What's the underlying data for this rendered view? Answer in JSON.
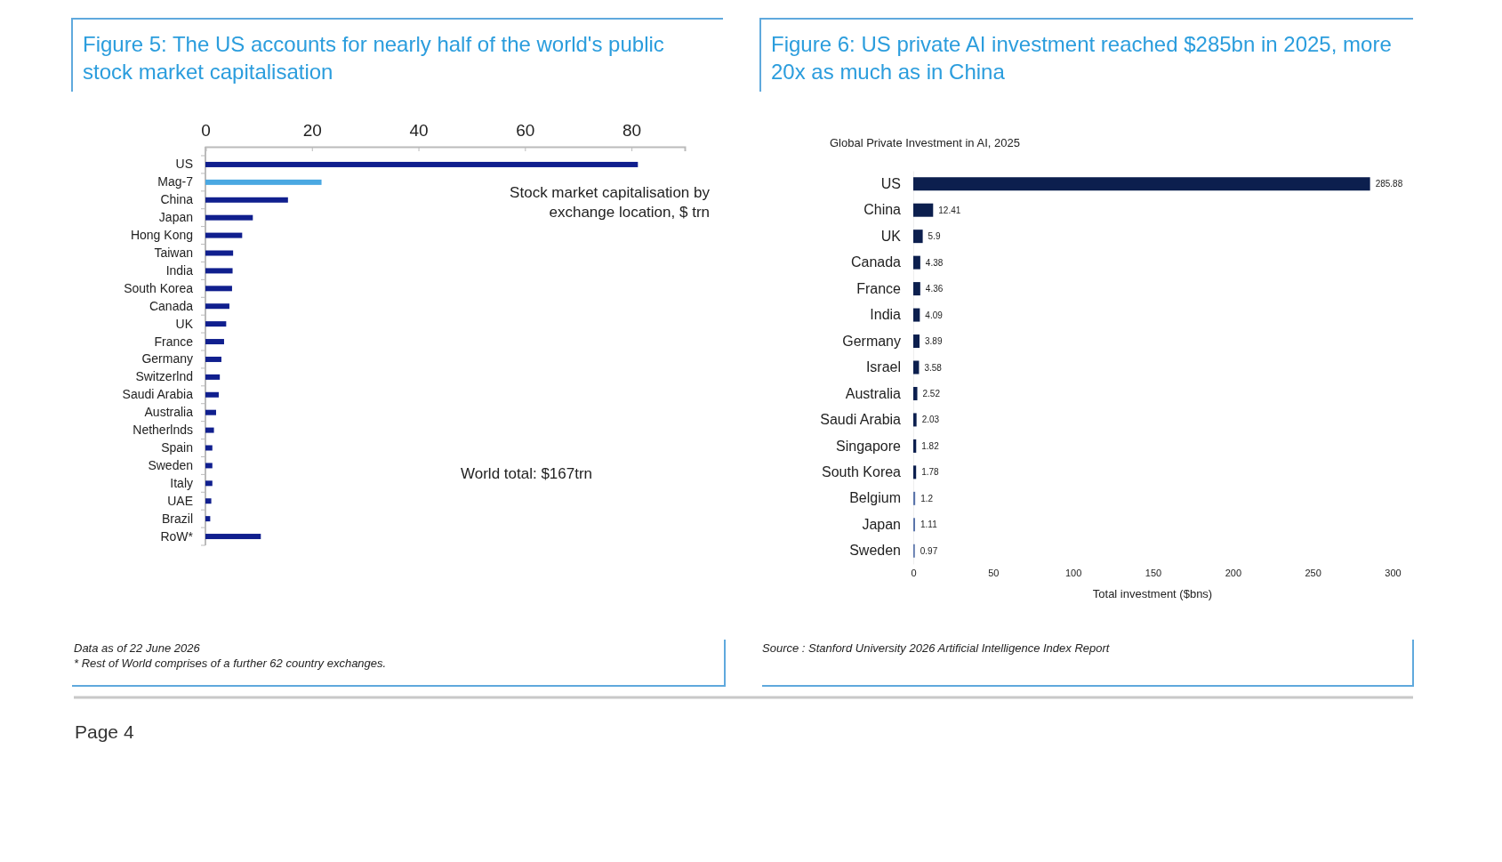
{
  "chart_data": [
    {
      "type": "bar",
      "orientation": "horizontal",
      "title": "Figure 5: The US accounts for nearly half of the world's public stock market capitalisation",
      "categories": [
        "US",
        "Mag-7",
        "China",
        "Japan",
        "Hong Kong",
        "Taiwan",
        "India",
        "South Korea",
        "Canada",
        "UK",
        "France",
        "Germany",
        "Switzerlnd",
        "Saudi Arabia",
        "Australia",
        "Netherlnds",
        "Spain",
        "Sweden",
        "Italy",
        "UAE",
        "Brazil",
        "RoW*"
      ],
      "values": [
        81.2,
        21.8,
        15.5,
        8.9,
        6.9,
        5.2,
        5.1,
        5.0,
        4.5,
        3.9,
        3.5,
        3.0,
        2.7,
        2.5,
        2.0,
        1.6,
        1.3,
        1.3,
        1.3,
        1.1,
        0.9,
        10.4
      ],
      "colors": [
        "#101f8e",
        "#4aa8e2",
        "#101f8e",
        "#101f8e",
        "#101f8e",
        "#101f8e",
        "#101f8e",
        "#101f8e",
        "#101f8e",
        "#101f8e",
        "#101f8e",
        "#101f8e",
        "#101f8e",
        "#101f8e",
        "#101f8e",
        "#101f8e",
        "#101f8e",
        "#101f8e",
        "#101f8e",
        "#101f8e",
        "#101f8e",
        "#101f8e"
      ],
      "xlim": [
        0,
        90
      ],
      "xticks": [
        0,
        20,
        40,
        60,
        80
      ],
      "annotations": [
        "Stock market capitalisation by exchange location, $ trn",
        "World total: $167trn",
        "Data as of 22 June 2026",
        "* Rest of World comprises of a further 62 country exchanges."
      ]
    },
    {
      "type": "bar",
      "orientation": "horizontal",
      "title": "Figure 6: US private AI investment reached $285bn in 2025, more 20x as much as in China",
      "subtitle": "Global Private Investment in AI, 2025",
      "xlabel": "Total investment ($bns)",
      "categories": [
        "US",
        "China",
        "UK",
        "Canada",
        "France",
        "India",
        "Germany",
        "Israel",
        "Australia",
        "Saudi Arabia",
        "Singapore",
        "South Korea",
        "Belgium",
        "Japan",
        "Sweden"
      ],
      "values": [
        285.88,
        12.41,
        5.9,
        4.38,
        4.36,
        4.09,
        3.89,
        3.58,
        2.52,
        2.03,
        1.82,
        1.78,
        1.2,
        1.11,
        0.97
      ],
      "colors": [
        "#0c1f4e",
        "#0c1f4e",
        "#0c1f4e",
        "#0c1f4e",
        "#0c1f4e",
        "#0c1f4e",
        "#0c1f4e",
        "#0c1f4e",
        "#0c1f4e",
        "#0c1f4e",
        "#0c1f4e",
        "#0c1f4e",
        "#5a74aa",
        "#5a74aa",
        "#5a74aa"
      ],
      "xlim": [
        0,
        300
      ],
      "xticks": [
        0,
        50,
        100,
        150,
        200,
        250,
        300
      ],
      "data_labels": true,
      "annotations": [
        "Source : Stanford University 2026 Artificial Intelligence Index Report",
        "Page 4"
      ]
    }
  ]
}
